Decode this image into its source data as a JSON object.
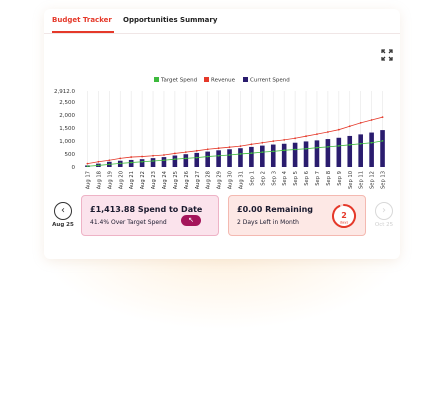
{
  "tabs": [
    {
      "label": "Budget Tracker",
      "active": true
    },
    {
      "label": "Opportunities Summary",
      "active": false
    }
  ],
  "colors": {
    "accent": "#e5392a",
    "target": "#3dba3d",
    "revenue": "#e5392a",
    "current": "#2a1c6e"
  },
  "icons": {
    "expand": "expand-icon",
    "prev": "chevron-left-icon",
    "next": "chevron-right-icon",
    "action": "cursor-arrow-icon"
  },
  "nav": {
    "prev_label": "Aug 25",
    "next_label": "Oct 25",
    "prev_glyph": "‹",
    "next_glyph": "›",
    "next_disabled": true
  },
  "stats": {
    "spend_title": "£1,413.88 Spend to Date",
    "spend_sub": "41.4% Over Target Spend",
    "action_glyph": "↖",
    "remaining_title": "£0.00 Remaining",
    "remaining_sub": "2 Days Left in Month",
    "days_value": "2",
    "days_unit": "days",
    "days_progress": 0.93
  },
  "chart_data": {
    "type": "bar",
    "legend": [
      "Target Spend",
      "Revenue",
      "Current Spend"
    ],
    "legend_position": "top",
    "ylim": [
      0,
      2912
    ],
    "yticks": [
      "2,912.0",
      "2,500",
      "2,000",
      "1,500",
      "1,000",
      "500",
      "0"
    ],
    "ytick_values": [
      2912,
      2500,
      2000,
      1500,
      1000,
      500,
      0
    ],
    "categories": [
      "Aug 17",
      "Aug 18",
      "Aug 19",
      "Aug 20",
      "Aug 21",
      "Aug 22",
      "Aug 23",
      "Aug 24",
      "Aug 25",
      "Aug 26",
      "Aug 27",
      "Aug 28",
      "Aug 29",
      "Aug 30",
      "Aug 31",
      "Sep 1",
      "Sep 2",
      "Sep 3",
      "Sep 4",
      "Sep 5",
      "Sep 6",
      "Sep 7",
      "Sep 8",
      "Sep 9",
      "Sep 10",
      "Sep 11",
      "Sep 12",
      "Sep 13"
    ],
    "series": [
      {
        "name": "Current Spend",
        "type": "bar",
        "values": [
          60,
          130,
          200,
          240,
          270,
          300,
          340,
          380,
          440,
          490,
          540,
          590,
          640,
          680,
          720,
          770,
          820,
          860,
          890,
          930,
          980,
          1020,
          1070,
          1120,
          1190,
          1250,
          1320,
          1414
        ]
      },
      {
        "name": "Revenue",
        "type": "line",
        "values": [
          130,
          200,
          260,
          330,
          380,
          400,
          430,
          460,
          520,
          570,
          620,
          680,
          720,
          760,
          800,
          870,
          930,
          990,
          1040,
          1100,
          1180,
          1260,
          1340,
          1430,
          1560,
          1690,
          1800,
          1910
        ]
      },
      {
        "name": "Target Spend",
        "type": "line",
        "values": [
          30,
          60,
          100,
          140,
          170,
          200,
          230,
          260,
          300,
          330,
          360,
          400,
          430,
          460,
          500,
          530,
          570,
          600,
          640,
          670,
          700,
          740,
          770,
          810,
          850,
          890,
          930,
          1000
        ]
      }
    ],
    "grid": "vertical"
  }
}
